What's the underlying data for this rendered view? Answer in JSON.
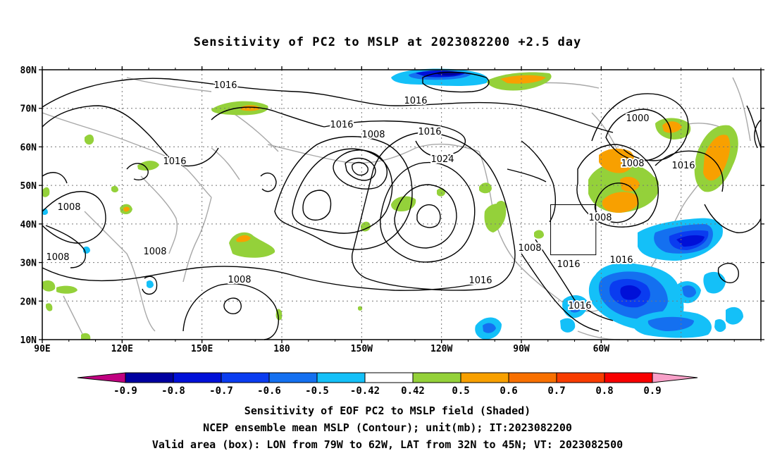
{
  "title": "Sensitivity of PC2 to MSLP at 2023082200 +2.5 day",
  "lat_ticks": [
    "80N",
    "70N",
    "60N",
    "50N",
    "40N",
    "30N",
    "20N",
    "10N"
  ],
  "lon_ticks": [
    "90E",
    "120E",
    "150E",
    "180",
    "150W",
    "120W",
    "90W",
    "60W"
  ],
  "colorbar": {
    "labels": [
      "-0.9",
      "-0.8",
      "-0.7",
      "-0.6",
      "-0.5",
      "-0.42",
      "0.42",
      "0.5",
      "0.6",
      "0.7",
      "0.8",
      "0.9"
    ],
    "colors": [
      "#c00080",
      "#0000a0",
      "#0010d8",
      "#0a3cf0",
      "#1470f0",
      "#14c0f8",
      "#ffffff",
      "#94d13a",
      "#f8a000",
      "#f87000",
      "#f83c00",
      "#f80000",
      "#f8a0c8"
    ]
  },
  "contour_labels": [
    {
      "text": "1016"
    },
    {
      "text": "1016"
    },
    {
      "text": "1016"
    },
    {
      "text": "1008"
    },
    {
      "text": "1016"
    },
    {
      "text": "1024"
    },
    {
      "text": "1016"
    },
    {
      "text": "1000"
    },
    {
      "text": "1008"
    },
    {
      "text": "1016"
    },
    {
      "text": "1008"
    },
    {
      "text": "1008"
    },
    {
      "text": "1008"
    },
    {
      "text": "1008"
    },
    {
      "text": "1016"
    },
    {
      "text": "1016"
    },
    {
      "text": "1016"
    },
    {
      "text": "1008"
    },
    {
      "text": "1016"
    },
    {
      "text": "1008"
    }
  ],
  "footer": [
    "Sensitivity of EOF PC2 to MSLP field (Shaded)",
    "NCEP ensemble mean MSLP (Contour); unit(mb); IT:2023082200",
    "Valid area (box): LON from 79W to 62W, LAT from 32N to 45N; VT: 2023082500"
  ],
  "valid_box": {
    "lon_min": -79,
    "lon_max": -62,
    "lat_min": 32,
    "lat_max": 45
  }
}
